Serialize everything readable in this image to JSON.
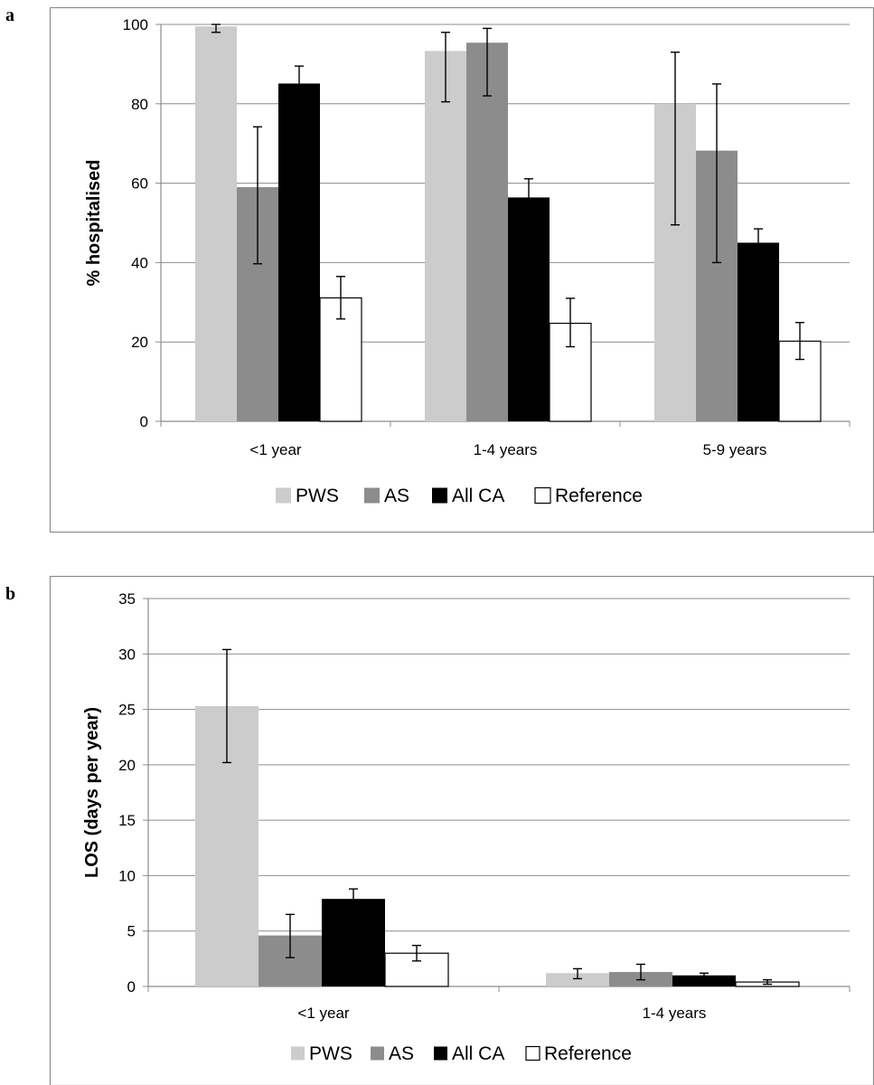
{
  "panel_a_label": "a",
  "panel_b_label": "b",
  "colors": {
    "PWS": "#cccccc",
    "AS": "#8c8c8c",
    "All CA": "#000000",
    "Reference": "#ffffff"
  },
  "chart_data": [
    {
      "type": "bar",
      "title": "",
      "xlabel": "",
      "ylabel": "% hospitalised",
      "categories": [
        "<1 year",
        "1-4 years",
        "5-9 years"
      ],
      "ylim": [
        0,
        100
      ],
      "yticks": [
        0,
        20,
        40,
        60,
        80,
        100
      ],
      "ytick_labels": [
        "0",
        "20",
        "40",
        "60",
        "80",
        "100"
      ],
      "legend": [
        "PWS",
        "AS",
        "All CA",
        "Reference"
      ],
      "grid": true,
      "series": [
        {
          "name": "PWS",
          "values": [
            99.5,
            93.3,
            80.0
          ],
          "err_low": [
            98.0,
            80.5,
            49.5
          ],
          "err_high": [
            100.0,
            98.0,
            93.0
          ]
        },
        {
          "name": "AS",
          "values": [
            59.0,
            95.4,
            68.2
          ],
          "err_low": [
            39.7,
            82.0,
            40.0
          ],
          "err_high": [
            74.2,
            99.0,
            85.0
          ]
        },
        {
          "name": "All CA",
          "values": [
            85.1,
            56.4,
            45.0
          ],
          "err_low": [
            80.7,
            51.8,
            41.5
          ],
          "err_high": [
            89.5,
            61.1,
            48.5
          ]
        },
        {
          "name": "Reference",
          "values": [
            31.1,
            24.7,
            20.2
          ],
          "err_low": [
            25.8,
            18.8,
            15.6
          ],
          "err_high": [
            36.5,
            31.0,
            24.9
          ]
        }
      ]
    },
    {
      "type": "bar",
      "title": "",
      "xlabel": "",
      "ylabel": "LOS (days per year)",
      "categories": [
        "<1 year",
        "1-4 years"
      ],
      "ylim": [
        0,
        35
      ],
      "yticks": [
        0,
        5,
        10,
        15,
        20,
        25,
        30,
        35
      ],
      "ytick_labels": [
        "0",
        "5",
        "10",
        "15",
        "20",
        "25",
        "30",
        "35"
      ],
      "legend": [
        "PWS",
        "AS",
        "All CA",
        "Reference"
      ],
      "grid": true,
      "series": [
        {
          "name": "PWS",
          "values": [
            25.3,
            1.2
          ],
          "err_low": [
            20.2,
            0.7
          ],
          "err_high": [
            30.4,
            1.6
          ]
        },
        {
          "name": "AS",
          "values": [
            4.6,
            1.3
          ],
          "err_low": [
            2.6,
            0.6
          ],
          "err_high": [
            6.5,
            2.0
          ]
        },
        {
          "name": "All CA",
          "values": [
            7.9,
            1.0
          ],
          "err_low": [
            6.9,
            0.8
          ],
          "err_high": [
            8.8,
            1.2
          ]
        },
        {
          "name": "Reference",
          "values": [
            3.0,
            0.4
          ],
          "err_low": [
            2.3,
            0.2
          ],
          "err_high": [
            3.7,
            0.6
          ]
        }
      ]
    }
  ]
}
